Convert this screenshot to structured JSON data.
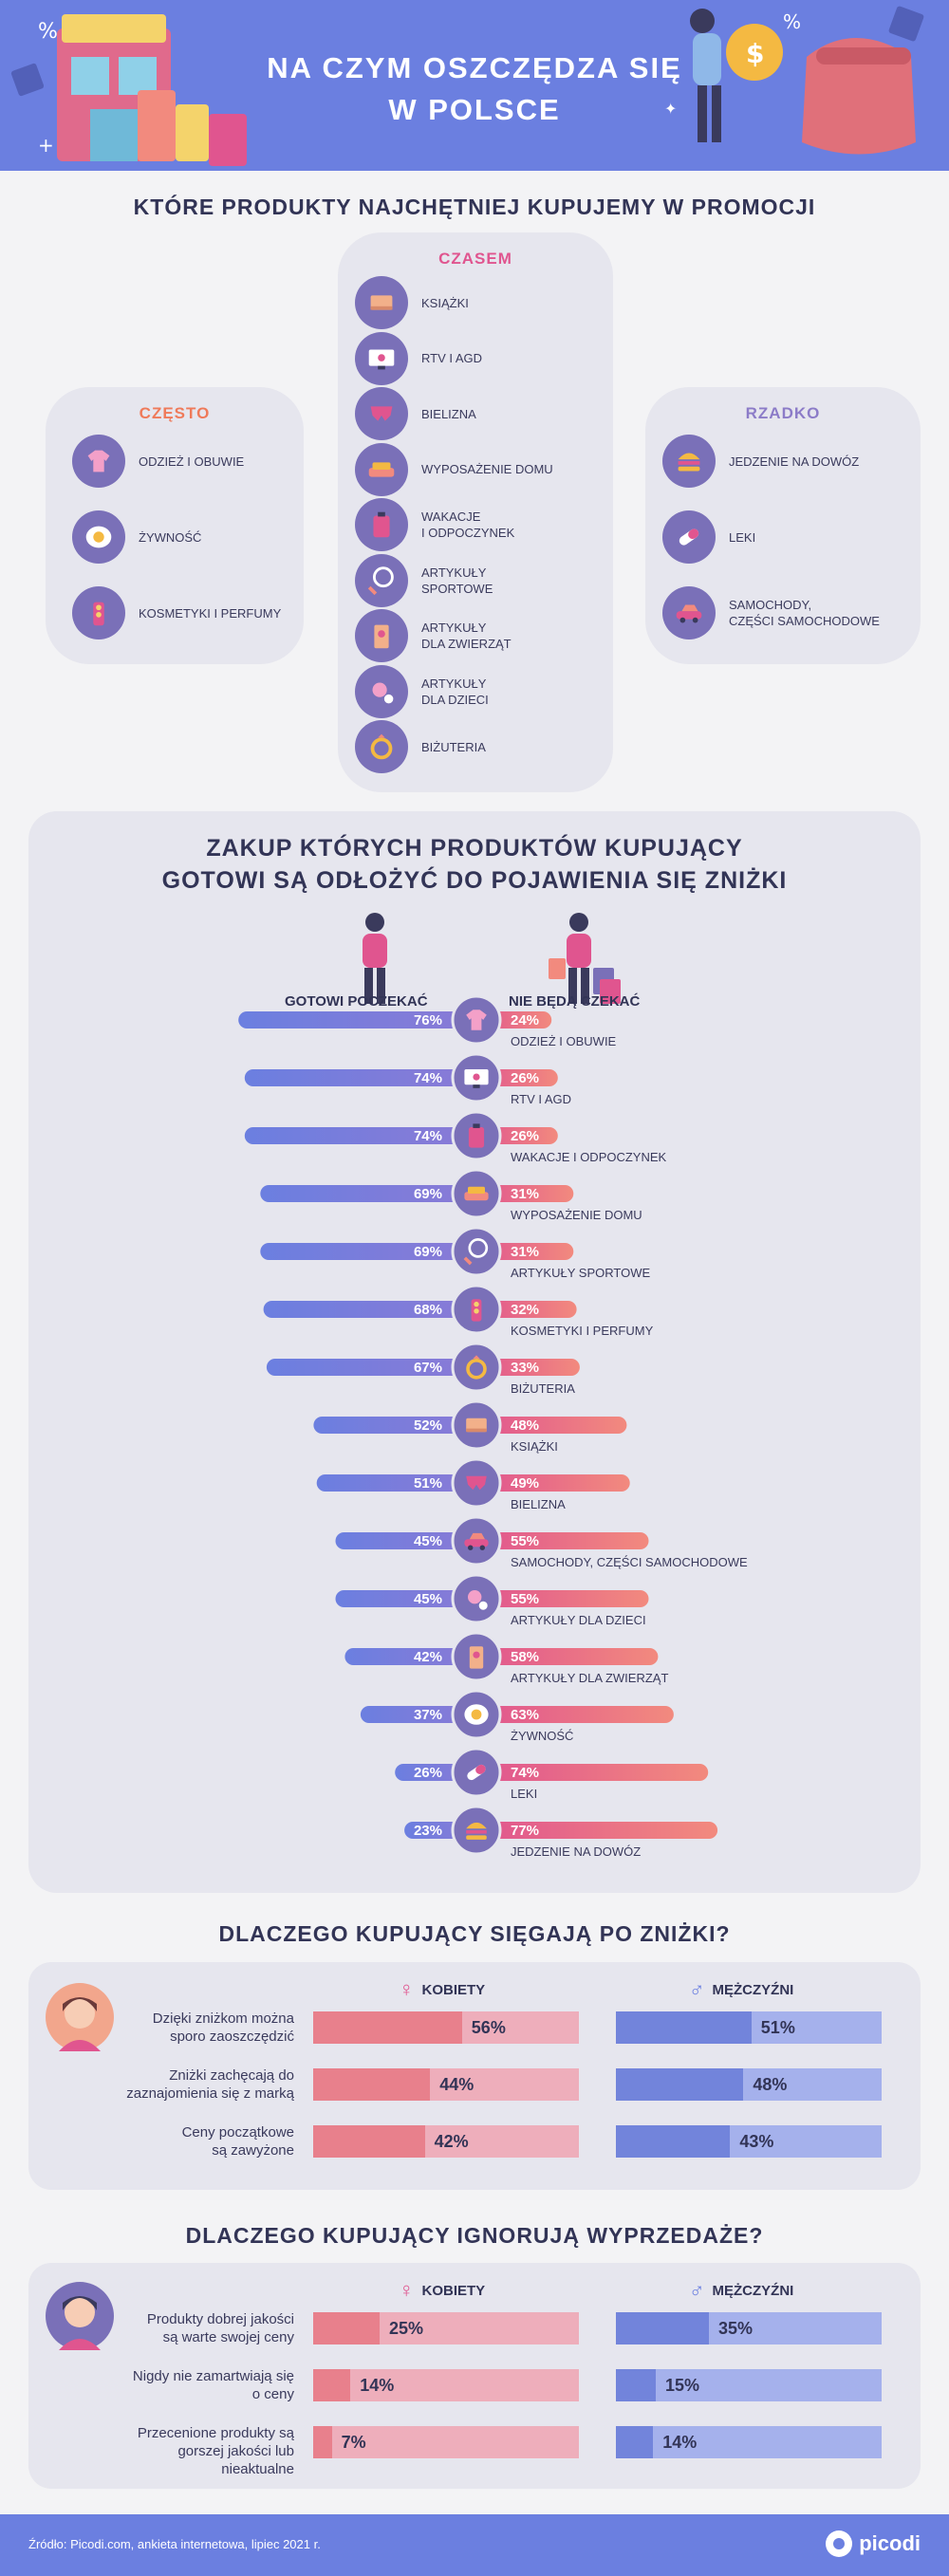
{
  "header": {
    "title_line1": "NA CZYM OSZCZĘDZA SIĘ",
    "title_line2": "W POLSCE"
  },
  "section1": {
    "title": "KTÓRE PRODUKTY NAJCHĘTNIEJ KUPUJEMY W PROMOCJI",
    "czesto": {
      "heading": "CZĘSTO",
      "color": "#ef7a5a",
      "items": [
        {
          "label": "ODZIEŻ I OBUWIE",
          "icon": "clothes-icon"
        },
        {
          "label": "ŻYWNOŚĆ",
          "icon": "egg-icon"
        },
        {
          "label": "KOSMETYKI I PERFUMY",
          "icon": "cosmetics-icon"
        }
      ]
    },
    "czasem": {
      "heading": "CZASEM",
      "color": "#e0558f",
      "items": [
        {
          "label": "KSIĄŻKI",
          "icon": "book-icon"
        },
        {
          "label": "RTV I AGD",
          "icon": "tv-icon"
        },
        {
          "label": "BIELIZNA",
          "icon": "underwear-icon"
        },
        {
          "label": "WYPOSAŻENIE DOMU",
          "icon": "sofa-icon"
        },
        {
          "label": "WAKACJE\nI ODPOCZYNEK",
          "icon": "suitcase-icon"
        },
        {
          "label": "ARTYKUŁY\nSPORTOWE",
          "icon": "racket-icon"
        },
        {
          "label": "ARTYKUŁY\nDLA ZWIERZĄT",
          "icon": "pet-food-icon"
        },
        {
          "label": "ARTYKUŁY\nDLA DZIECI",
          "icon": "pacifier-icon"
        },
        {
          "label": "BIŻUTERIA",
          "icon": "ring-icon"
        }
      ]
    },
    "rzadko": {
      "heading": "RZADKO",
      "color": "#8c7cc8",
      "items": [
        {
          "label": "JEDZENIE NA DOWÓZ",
          "icon": "burger-icon"
        },
        {
          "label": "LEKI",
          "icon": "pill-icon"
        },
        {
          "label": "SAMOCHODY,\nCZĘŚCI SAMOCHODOWE",
          "icon": "car-icon"
        }
      ]
    }
  },
  "section2": {
    "title_line1": "ZAKUP KTÓRYCH PRODUKTÓW KUPUJĄCY",
    "title_line2": "GOTOWI SĄ ODŁOŻYĆ DO POJAWIENIA SIĘ ZNIŻKI",
    "left_label": "GOTOWI POCZEKAĆ",
    "right_label": "NIE BĘDĄ CZEKAĆ"
  },
  "chart_data": {
    "type": "bar",
    "title": "ZAKUP KTÓRYCH PRODUKTÓW KUPUJĄCY GOTOWI SĄ ODŁOŻYĆ DO POJAWIENIA SIĘ ZNIŻKI",
    "categories": [
      "ODZIEŻ I OBUWIE",
      "RTV I AGD",
      "WAKACJE I ODPOCZYNEK",
      "WYPOSAŻENIE DOMU",
      "ARTYKUŁY SPORTOWE",
      "KOSMETYKI I PERFUMY",
      "BIŻUTERIA",
      "KSIĄŻKI",
      "BIELIZNA",
      "SAMOCHODY, CZĘŚCI SAMOCHODOWE",
      "ARTYKUŁY DLA DZIECI",
      "ARTYKUŁY DLA ZWIERZĄT",
      "ŻYWNOŚĆ",
      "LEKI",
      "JEDZENIE NA DOWÓZ"
    ],
    "icons": [
      "clothes-icon",
      "tv-icon",
      "suitcase-icon",
      "sofa-icon",
      "racket-icon",
      "cosmetics-icon",
      "ring-icon",
      "book-icon",
      "underwear-icon",
      "car-icon",
      "pacifier-icon",
      "pet-food-icon",
      "egg-icon",
      "pill-icon",
      "burger-icon"
    ],
    "series": [
      {
        "name": "GOTOWI POCZEKAĆ",
        "values": [
          76,
          74,
          74,
          69,
          69,
          68,
          67,
          52,
          51,
          45,
          45,
          42,
          37,
          26,
          23
        ],
        "color": "#6b7fe0"
      },
      {
        "name": "NIE BĘDĄ CZEKAĆ",
        "values": [
          24,
          26,
          26,
          31,
          31,
          32,
          33,
          48,
          49,
          55,
          55,
          58,
          63,
          74,
          77
        ],
        "color": "#f28a7e"
      }
    ],
    "unit": "%",
    "xlim": [
      0,
      100
    ]
  },
  "section3": {
    "title": "DLACZEGO KUPUJĄCY SIĘGAJĄ PO ZNIŻKI?",
    "women_label": "KOBIETY",
    "men_label": "MĘŻCZYŹNI",
    "rows": [
      {
        "label": "Dzięki zniżkom można\nsporo zaoszczędzić",
        "women": 56,
        "men": 51,
        "women_text": "56%",
        "men_text": "51%"
      },
      {
        "label": "Zniżki zachęcają do\nzaznajomienia się z marką",
        "women": 44,
        "men": 48,
        "women_text": "44%",
        "men_text": "48%"
      },
      {
        "label": "Ceny początkowe\nsą zawyżone",
        "women": 42,
        "men": 43,
        "women_text": "42%",
        "men_text": "43%"
      }
    ]
  },
  "section4": {
    "title": "DLACZEGO KUPUJĄCY IGNORUJĄ WYPRZEDAŻE?",
    "women_label": "KOBIETY",
    "men_label": "MĘŻCZYŹNI",
    "rows": [
      {
        "label": "Produkty dobrej jakości\nsą warte swojej ceny",
        "women": 25,
        "men": 35,
        "women_text": "25%",
        "men_text": "35%"
      },
      {
        "label": "Nigdy nie zamartwiają się\no ceny",
        "women": 14,
        "men": 15,
        "women_text": "14%",
        "men_text": "15%"
      },
      {
        "label": "Przecenione produkty są\ngorszej jakości lub nieaktualne",
        "women": 7,
        "men": 14,
        "women_text": "7%",
        "men_text": "14%"
      }
    ]
  },
  "footer": {
    "source": "Źródło: Picodi.com, ankieta internetowa, lipiec 2021 r.",
    "logo": "picodi"
  },
  "colors": {
    "blue": "#6b7fe0",
    "salmon": "#f28a7e",
    "pink": "#e0558f",
    "women_bar": "#e8808c",
    "women_bg": "#eeaebb",
    "men_bar": "#7284db",
    "men_bg": "#a5b1ec"
  }
}
